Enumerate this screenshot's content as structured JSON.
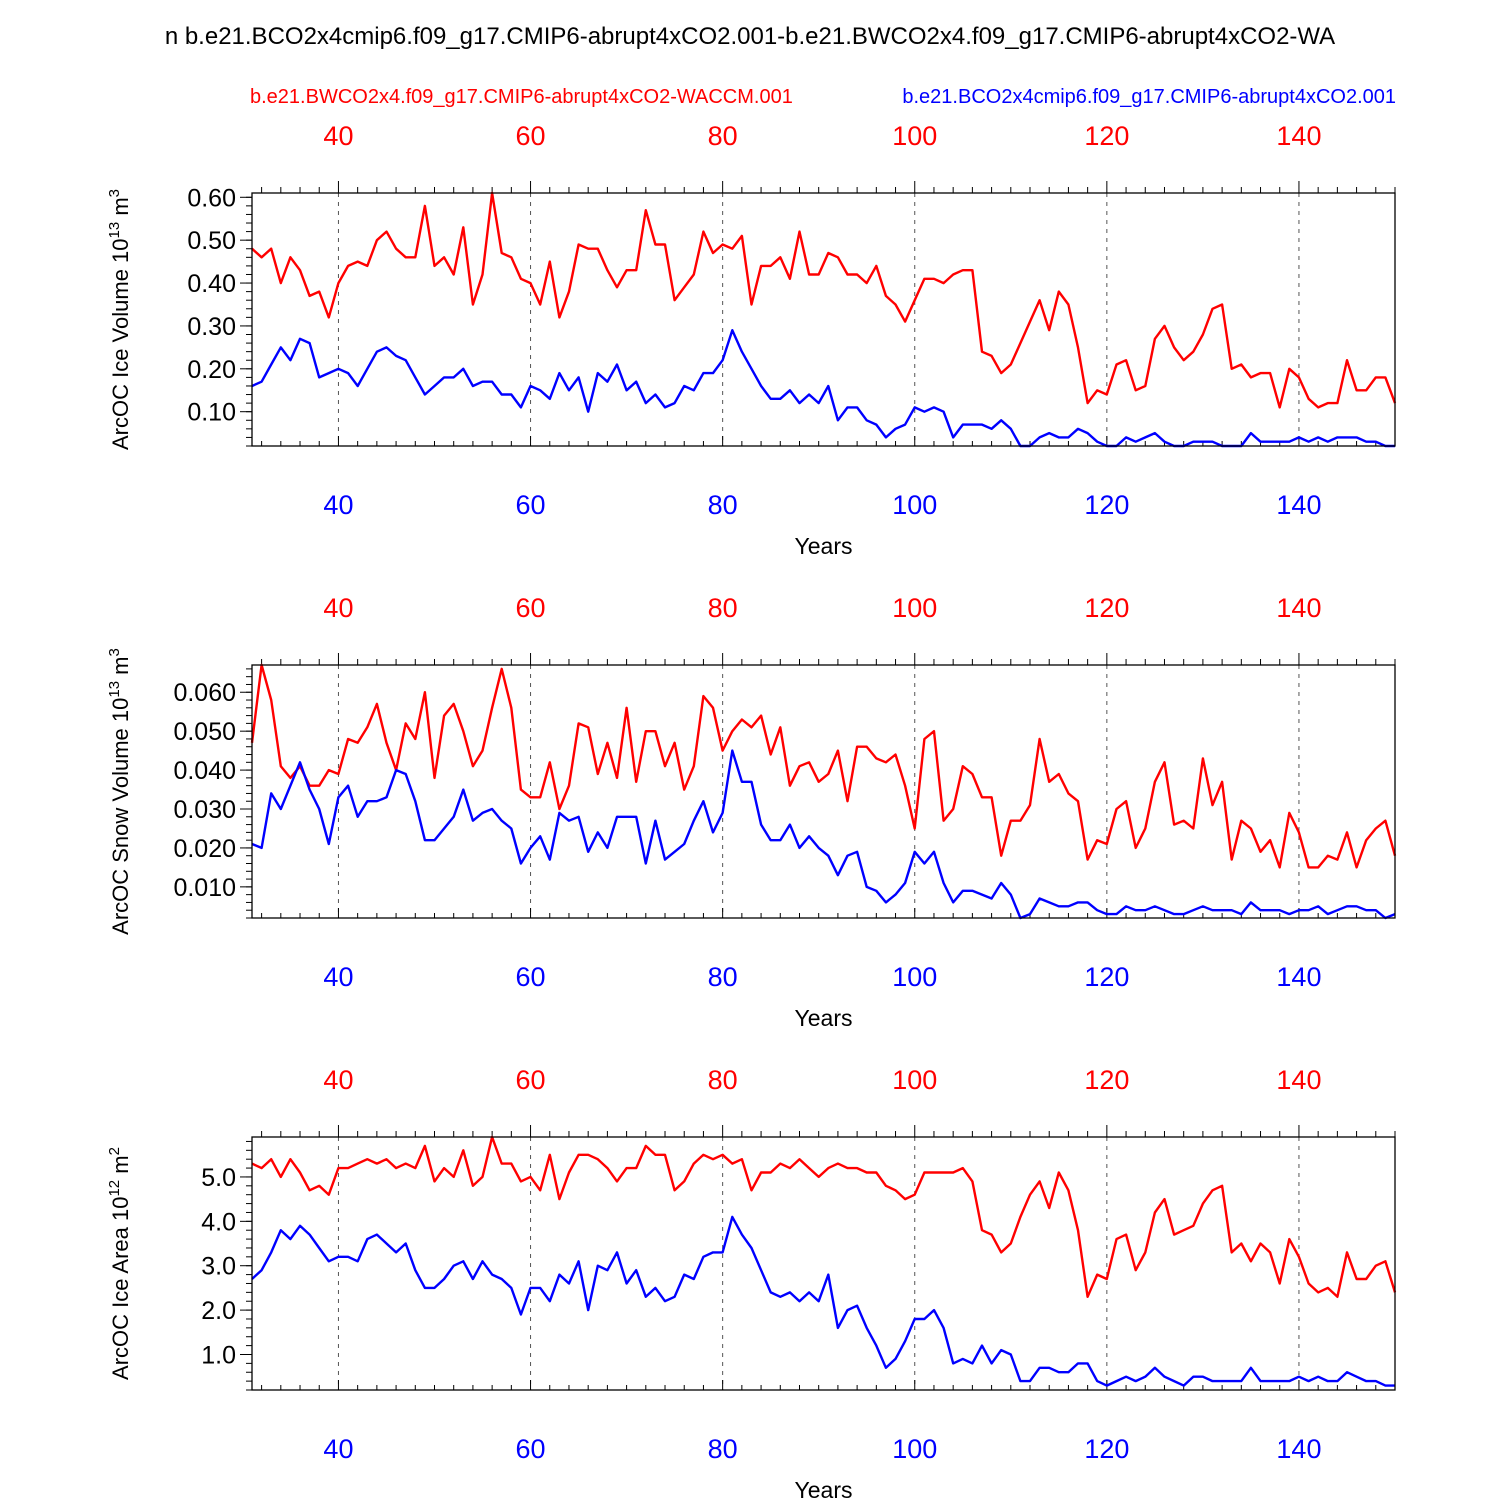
{
  "page_title": "n b.e21.BCO2x4cmip6.f09_g17.CMIP6-abrupt4xCO2.001-b.e21.BWCO2x4.f09_g17.CMIP6-abrupt4xCO2-WA",
  "legend": {
    "red_case": "b.e21.BWCO2x4.f09_g17.CMIP6-abrupt4xCO2-WACCM.001",
    "blue_case": "b.e21.BCO2x4cmip6.f09_g17.CMIP6-abrupt4xCO2.001"
  },
  "colors": {
    "red": "#ff0000",
    "blue": "#0000ff",
    "axis": "#000000",
    "grid": "#555555"
  },
  "chart_data": [
    {
      "type": "line",
      "title": "",
      "ylabel": "ArcOC Ice Volume",
      "yunit_base": "10",
      "yunit_exp": "13",
      "yunit_suffix": " m",
      "yunit_sup": "3",
      "xlabel": "Years",
      "xlim": [
        31,
        150
      ],
      "ylim": [
        0.02,
        0.61
      ],
      "yticks": [
        0.1,
        0.2,
        0.3,
        0.4,
        0.5,
        0.6
      ],
      "ytick_labels": [
        "0.10",
        "0.20",
        "0.30",
        "0.40",
        "0.50",
        "0.60"
      ],
      "xticks": [
        40,
        60,
        80,
        100,
        120,
        140
      ],
      "xtick_labels": [
        "40",
        "60",
        "80",
        "100",
        "120",
        "140"
      ],
      "x_start": 31,
      "series": [
        {
          "name": "b.e21.BWCO2x4.f09_g17.CMIP6-abrupt4xCO2-WACCM.001",
          "color": "#ff0000",
          "values": [
            0.48,
            0.46,
            0.48,
            0.4,
            0.46,
            0.43,
            0.37,
            0.38,
            0.32,
            0.4,
            0.44,
            0.45,
            0.44,
            0.5,
            0.52,
            0.48,
            0.46,
            0.46,
            0.58,
            0.44,
            0.46,
            0.42,
            0.53,
            0.35,
            0.42,
            0.61,
            0.47,
            0.46,
            0.41,
            0.4,
            0.35,
            0.45,
            0.32,
            0.38,
            0.49,
            0.48,
            0.48,
            0.43,
            0.39,
            0.43,
            0.43,
            0.57,
            0.49,
            0.49,
            0.36,
            0.39,
            0.42,
            0.52,
            0.47,
            0.49,
            0.48,
            0.51,
            0.35,
            0.44,
            0.44,
            0.46,
            0.41,
            0.52,
            0.42,
            0.42,
            0.47,
            0.46,
            0.42,
            0.42,
            0.4,
            0.44,
            0.37,
            0.35,
            0.31,
            0.36,
            0.41,
            0.41,
            0.4,
            0.42,
            0.43,
            0.43,
            0.24,
            0.23,
            0.19,
            0.21,
            0.26,
            0.31,
            0.36,
            0.29,
            0.38,
            0.35,
            0.25,
            0.12,
            0.15,
            0.14,
            0.21,
            0.22,
            0.15,
            0.16,
            0.27,
            0.3,
            0.25,
            0.22,
            0.24,
            0.28,
            0.34,
            0.35,
            0.2,
            0.21,
            0.18,
            0.19,
            0.19,
            0.11,
            0.2,
            0.18,
            0.13,
            0.11,
            0.12,
            0.12,
            0.22,
            0.15,
            0.15,
            0.18,
            0.18,
            0.12
          ]
        },
        {
          "name": "b.e21.BCO2x4cmip6.f09_g17.CMIP6-abrupt4xCO2.001",
          "color": "#0000ff",
          "values": [
            0.16,
            0.17,
            0.21,
            0.25,
            0.22,
            0.27,
            0.26,
            0.18,
            0.19,
            0.2,
            0.19,
            0.16,
            0.2,
            0.24,
            0.25,
            0.23,
            0.22,
            0.18,
            0.14,
            0.16,
            0.18,
            0.18,
            0.2,
            0.16,
            0.17,
            0.17,
            0.14,
            0.14,
            0.11,
            0.16,
            0.15,
            0.13,
            0.19,
            0.15,
            0.18,
            0.1,
            0.19,
            0.17,
            0.21,
            0.15,
            0.17,
            0.12,
            0.14,
            0.11,
            0.12,
            0.16,
            0.15,
            0.19,
            0.19,
            0.22,
            0.29,
            0.24,
            0.2,
            0.16,
            0.13,
            0.13,
            0.15,
            0.12,
            0.14,
            0.12,
            0.16,
            0.08,
            0.11,
            0.11,
            0.08,
            0.07,
            0.04,
            0.06,
            0.07,
            0.11,
            0.1,
            0.11,
            0.1,
            0.04,
            0.07,
            0.07,
            0.07,
            0.06,
            0.08,
            0.06,
            0.02,
            0.02,
            0.04,
            0.05,
            0.04,
            0.04,
            0.06,
            0.05,
            0.03,
            0.02,
            0.02,
            0.04,
            0.03,
            0.04,
            0.05,
            0.03,
            0.02,
            0.02,
            0.03,
            0.03,
            0.03,
            0.02,
            0.02,
            0.02,
            0.05,
            0.03,
            0.03,
            0.03,
            0.03,
            0.04,
            0.03,
            0.04,
            0.03,
            0.04,
            0.04,
            0.04,
            0.03,
            0.03,
            0.02,
            0.02
          ]
        }
      ]
    },
    {
      "type": "line",
      "title": "",
      "ylabel": "ArcOC Snow Volume",
      "yunit_base": "10",
      "yunit_exp": "13",
      "yunit_suffix": " m",
      "yunit_sup": "3",
      "xlabel": "Years",
      "xlim": [
        31,
        150
      ],
      "ylim": [
        0.002,
        0.067
      ],
      "yticks": [
        0.01,
        0.02,
        0.03,
        0.04,
        0.05,
        0.06
      ],
      "ytick_labels": [
        "0.010",
        "0.020",
        "0.030",
        "0.040",
        "0.050",
        "0.060"
      ],
      "xticks": [
        40,
        60,
        80,
        100,
        120,
        140
      ],
      "xtick_labels": [
        "40",
        "60",
        "80",
        "100",
        "120",
        "140"
      ],
      "x_start": 31,
      "series": [
        {
          "name": "b.e21.BWCO2x4.f09_g17.CMIP6-abrupt4xCO2-WACCM.001",
          "color": "#ff0000",
          "values": [
            0.047,
            0.067,
            0.058,
            0.041,
            0.038,
            0.041,
            0.036,
            0.036,
            0.04,
            0.039,
            0.048,
            0.047,
            0.051,
            0.057,
            0.047,
            0.04,
            0.052,
            0.048,
            0.06,
            0.038,
            0.054,
            0.057,
            0.05,
            0.041,
            0.045,
            0.056,
            0.066,
            0.056,
            0.035,
            0.033,
            0.033,
            0.042,
            0.03,
            0.036,
            0.052,
            0.051,
            0.039,
            0.047,
            0.038,
            0.056,
            0.037,
            0.05,
            0.05,
            0.041,
            0.047,
            0.035,
            0.041,
            0.059,
            0.056,
            0.045,
            0.05,
            0.053,
            0.051,
            0.054,
            0.044,
            0.051,
            0.036,
            0.041,
            0.042,
            0.037,
            0.039,
            0.045,
            0.032,
            0.046,
            0.046,
            0.043,
            0.042,
            0.044,
            0.036,
            0.025,
            0.048,
            0.05,
            0.027,
            0.03,
            0.041,
            0.039,
            0.033,
            0.033,
            0.018,
            0.027,
            0.027,
            0.031,
            0.048,
            0.037,
            0.039,
            0.034,
            0.032,
            0.017,
            0.022,
            0.021,
            0.03,
            0.032,
            0.02,
            0.025,
            0.037,
            0.042,
            0.026,
            0.027,
            0.025,
            0.043,
            0.031,
            0.037,
            0.017,
            0.027,
            0.025,
            0.019,
            0.022,
            0.015,
            0.029,
            0.024,
            0.015,
            0.015,
            0.018,
            0.017,
            0.024,
            0.015,
            0.022,
            0.025,
            0.027,
            0.018
          ]
        },
        {
          "name": "b.e21.BCO2x4cmip6.f09_g17.CMIP6-abrupt4xCO2.001",
          "color": "#0000ff",
          "values": [
            0.021,
            0.02,
            0.034,
            0.03,
            0.036,
            0.042,
            0.035,
            0.03,
            0.021,
            0.033,
            0.036,
            0.028,
            0.032,
            0.032,
            0.033,
            0.04,
            0.039,
            0.032,
            0.022,
            0.022,
            0.025,
            0.028,
            0.035,
            0.027,
            0.029,
            0.03,
            0.027,
            0.025,
            0.016,
            0.02,
            0.023,
            0.017,
            0.029,
            0.027,
            0.028,
            0.019,
            0.024,
            0.02,
            0.028,
            0.028,
            0.028,
            0.016,
            0.027,
            0.017,
            0.019,
            0.021,
            0.027,
            0.032,
            0.024,
            0.029,
            0.045,
            0.037,
            0.037,
            0.026,
            0.022,
            0.022,
            0.026,
            0.02,
            0.023,
            0.02,
            0.018,
            0.013,
            0.018,
            0.019,
            0.01,
            0.009,
            0.006,
            0.008,
            0.011,
            0.019,
            0.016,
            0.019,
            0.011,
            0.006,
            0.009,
            0.009,
            0.008,
            0.007,
            0.011,
            0.008,
            0.002,
            0.003,
            0.007,
            0.006,
            0.005,
            0.005,
            0.006,
            0.006,
            0.004,
            0.003,
            0.003,
            0.005,
            0.004,
            0.004,
            0.005,
            0.004,
            0.003,
            0.003,
            0.004,
            0.005,
            0.004,
            0.004,
            0.004,
            0.003,
            0.006,
            0.004,
            0.004,
            0.004,
            0.003,
            0.004,
            0.004,
            0.005,
            0.003,
            0.004,
            0.005,
            0.005,
            0.004,
            0.004,
            0.002,
            0.003
          ]
        }
      ]
    },
    {
      "type": "line",
      "title": "",
      "ylabel": "ArcOC Ice Area",
      "yunit_base": "10",
      "yunit_exp": "12",
      "yunit_suffix": " m",
      "yunit_sup": "2",
      "xlabel": "Years",
      "xlim": [
        31,
        150
      ],
      "ylim": [
        0.2,
        5.9
      ],
      "yticks": [
        1.0,
        2.0,
        3.0,
        4.0,
        5.0
      ],
      "ytick_labels": [
        "1.0",
        "2.0",
        "3.0",
        "4.0",
        "5.0"
      ],
      "xticks": [
        40,
        60,
        80,
        100,
        120,
        140
      ],
      "xtick_labels": [
        "40",
        "60",
        "80",
        "100",
        "120",
        "140"
      ],
      "x_start": 31,
      "series": [
        {
          "name": "b.e21.BWCO2x4.f09_g17.CMIP6-abrupt4xCO2-WACCM.001",
          "color": "#ff0000",
          "values": [
            5.3,
            5.2,
            5.4,
            5.0,
            5.4,
            5.1,
            4.7,
            4.8,
            4.6,
            5.2,
            5.2,
            5.3,
            5.4,
            5.3,
            5.4,
            5.2,
            5.3,
            5.2,
            5.7,
            4.9,
            5.2,
            5.0,
            5.6,
            4.8,
            5.0,
            5.9,
            5.3,
            5.3,
            4.9,
            5.0,
            4.7,
            5.5,
            4.5,
            5.1,
            5.5,
            5.5,
            5.4,
            5.2,
            4.9,
            5.2,
            5.2,
            5.7,
            5.5,
            5.5,
            4.7,
            4.9,
            5.3,
            5.5,
            5.4,
            5.5,
            5.3,
            5.4,
            4.7,
            5.1,
            5.1,
            5.3,
            5.2,
            5.4,
            5.2,
            5.0,
            5.2,
            5.3,
            5.2,
            5.2,
            5.1,
            5.1,
            4.8,
            4.7,
            4.5,
            4.6,
            5.1,
            5.1,
            5.1,
            5.1,
            5.2,
            4.9,
            3.8,
            3.7,
            3.3,
            3.5,
            4.1,
            4.6,
            4.9,
            4.3,
            5.1,
            4.7,
            3.8,
            2.3,
            2.8,
            2.7,
            3.6,
            3.7,
            2.9,
            3.3,
            4.2,
            4.5,
            3.7,
            3.8,
            3.9,
            4.4,
            4.7,
            4.8,
            3.3,
            3.5,
            3.1,
            3.5,
            3.3,
            2.6,
            3.6,
            3.2,
            2.6,
            2.4,
            2.5,
            2.3,
            3.3,
            2.7,
            2.7,
            3.0,
            3.1,
            2.4
          ]
        },
        {
          "name": "b.e21.BCO2x4cmip6.f09_g17.CMIP6-abrupt4xCO2.001",
          "color": "#0000ff",
          "values": [
            2.7,
            2.9,
            3.3,
            3.8,
            3.6,
            3.9,
            3.7,
            3.4,
            3.1,
            3.2,
            3.2,
            3.1,
            3.6,
            3.7,
            3.5,
            3.3,
            3.5,
            2.9,
            2.5,
            2.5,
            2.7,
            3.0,
            3.1,
            2.7,
            3.1,
            2.8,
            2.7,
            2.5,
            1.9,
            2.5,
            2.5,
            2.2,
            2.8,
            2.6,
            3.1,
            2.0,
            3.0,
            2.9,
            3.3,
            2.6,
            2.9,
            2.3,
            2.5,
            2.2,
            2.3,
            2.8,
            2.7,
            3.2,
            3.3,
            3.3,
            4.1,
            3.7,
            3.4,
            2.9,
            2.4,
            2.3,
            2.4,
            2.2,
            2.4,
            2.2,
            2.8,
            1.6,
            2.0,
            2.1,
            1.6,
            1.2,
            0.7,
            0.9,
            1.3,
            1.8,
            1.8,
            2.0,
            1.6,
            0.8,
            0.9,
            0.8,
            1.2,
            0.8,
            1.1,
            1.0,
            0.4,
            0.4,
            0.7,
            0.7,
            0.6,
            0.6,
            0.8,
            0.8,
            0.4,
            0.3,
            0.4,
            0.5,
            0.4,
            0.5,
            0.7,
            0.5,
            0.4,
            0.3,
            0.5,
            0.5,
            0.4,
            0.4,
            0.4,
            0.4,
            0.7,
            0.4,
            0.4,
            0.4,
            0.4,
            0.5,
            0.4,
            0.5,
            0.4,
            0.4,
            0.6,
            0.5,
            0.4,
            0.4,
            0.3,
            0.3
          ]
        }
      ]
    }
  ]
}
